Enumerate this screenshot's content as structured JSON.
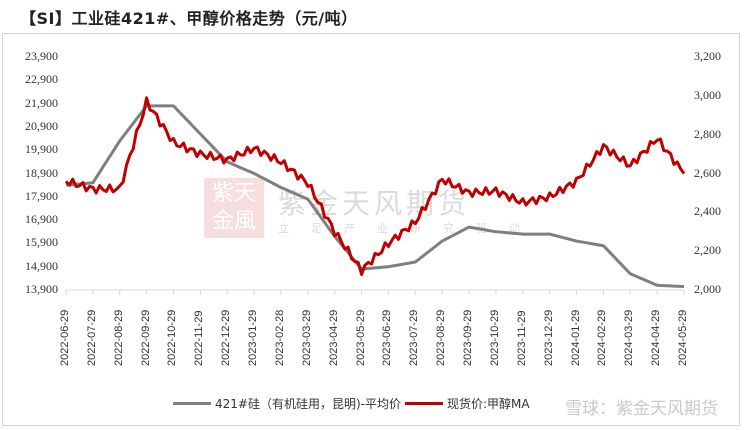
{
  "title": "【SI】工业硅421#、甲醇价格走势（元/吨）",
  "watermark": {
    "seal_text": "紫天金風",
    "brand": "紫金天风期货",
    "slogan": "立足产业研究驱动",
    "bottom": "雪球：紫金天风期货"
  },
  "legend": {
    "series1_label": "421#硅（有机硅用，昆明)-平均价",
    "series2_label": "现货价:甲醇MA"
  },
  "colors": {
    "silicon": "#7f7f7f",
    "methanol": "#c00000",
    "axis": "#d9d9d9"
  },
  "chart_data": {
    "type": "line",
    "title": "【SI】工业硅421#、甲醇价格走势（元/吨）",
    "xlabel": "",
    "ylabel_left": "元/吨",
    "ylabel_right": "元/吨",
    "ylim_left": [
      13900,
      23900
    ],
    "ylim_right": [
      2000,
      3200
    ],
    "left_ticks": [
      "23,900",
      "22,900",
      "21,900",
      "20,900",
      "19,900",
      "18,900",
      "17,900",
      "16,900",
      "15,900",
      "14,900",
      "13,900"
    ],
    "right_ticks": [
      "3,200",
      "3,000",
      "2,800",
      "2,600",
      "2,400",
      "2,200",
      "2,000"
    ],
    "grid": false,
    "legend_position": "bottom",
    "categories": [
      "2022-06-29",
      "2022-07-29",
      "2022-08-29",
      "2022-09-29",
      "2022-10-29",
      "2022-11-29",
      "2022-12-29",
      "2023-01-29",
      "2023-02-28",
      "2023-03-29",
      "2023-04-29",
      "2023-05-29",
      "2023-06-29",
      "2023-07-29",
      "2023-08-29",
      "2023-09-29",
      "2023-10-29",
      "2023-11-29",
      "2023-12-29",
      "2024-01-29",
      "2024-02-29",
      "2024-03-29",
      "2024-04-29",
      "2024-05-29"
    ],
    "series": [
      {
        "name": "421#硅（有机硅用，昆明)-平均价",
        "axis": "left",
        "values": [
          18400,
          18500,
          20300,
          21800,
          21800,
          20600,
          19400,
          18900,
          18300,
          17800,
          16200,
          14800,
          14900,
          15100,
          16000,
          16600,
          16400,
          16300,
          16300,
          16000,
          15800,
          14600,
          14100,
          14050
        ]
      },
      {
        "name": "现货价:甲醇MA",
        "axis": "right",
        "values": [
          2560,
          2520,
          2520,
          2970,
          2760,
          2700,
          2670,
          2730,
          2660,
          2550,
          2300,
          2100,
          2240,
          2350,
          2570,
          2500,
          2510,
          2450,
          2480,
          2560,
          2740,
          2640,
          2780,
          2600
        ]
      }
    ]
  }
}
